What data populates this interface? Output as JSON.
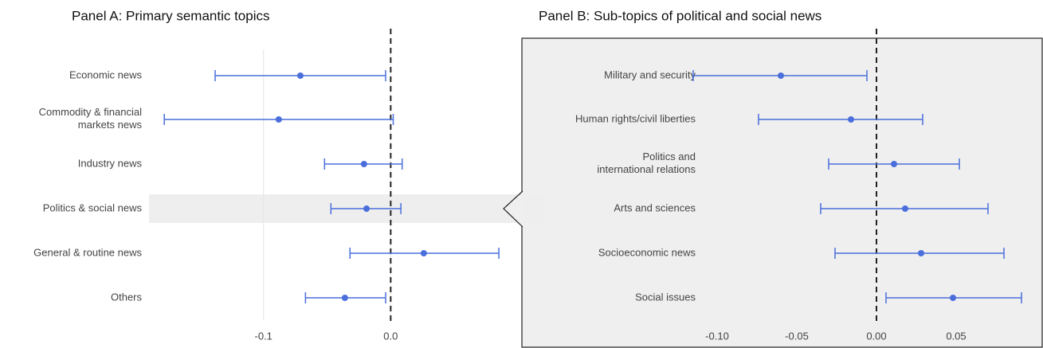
{
  "chart_data": [
    {
      "type": "errorbar",
      "title": "Panel A: Primary semantic topics",
      "categories": [
        "Economic news",
        "Commodity & financial\nmarkets news",
        "Industry news",
        "Politics & social news",
        "General & routine news",
        "Others"
      ],
      "values": [
        -0.071,
        -0.088,
        -0.021,
        -0.019,
        0.026,
        -0.036
      ],
      "ci_low": [
        -0.138,
        -0.178,
        -0.052,
        -0.047,
        -0.032,
        -0.067
      ],
      "ci_high": [
        -0.004,
        0.002,
        0.009,
        0.008,
        0.085,
        -0.004
      ],
      "color": "#4a6fdc",
      "xlim": [
        -0.19,
        0.1
      ],
      "xticks": [
        -0.1,
        {
          "value": 0,
          "label": "0.0"
        }
      ],
      "grid": true,
      "reference_line": 0,
      "highlight": "Politics & social news"
    },
    {
      "type": "errorbar",
      "title": "Panel B: Sub-topics of political and social news",
      "categories": [
        "Military and security",
        "Human rights/civil liberties",
        "Politics and\ninternational relations",
        "Arts and sciences",
        "Socioeconomic news",
        "Social issues"
      ],
      "values": [
        -0.06,
        -0.016,
        0.011,
        0.018,
        0.028,
        0.048
      ],
      "ci_low": [
        -0.115,
        -0.074,
        -0.03,
        -0.035,
        -0.026,
        0.006
      ],
      "ci_high": [
        -0.006,
        0.029,
        0.052,
        0.07,
        0.08,
        0.091
      ],
      "color": "#4a6fdc",
      "xlim": [
        -0.12,
        0.1
      ],
      "xticks": [
        {
          "value": -0.1,
          "label": "-0.10"
        },
        {
          "value": -0.05,
          "label": "-0.05"
        },
        {
          "value": 0,
          "label": "0.00"
        },
        {
          "value": 0.05,
          "label": "0.05"
        }
      ],
      "grid": false,
      "reference_line": 0
    }
  ]
}
